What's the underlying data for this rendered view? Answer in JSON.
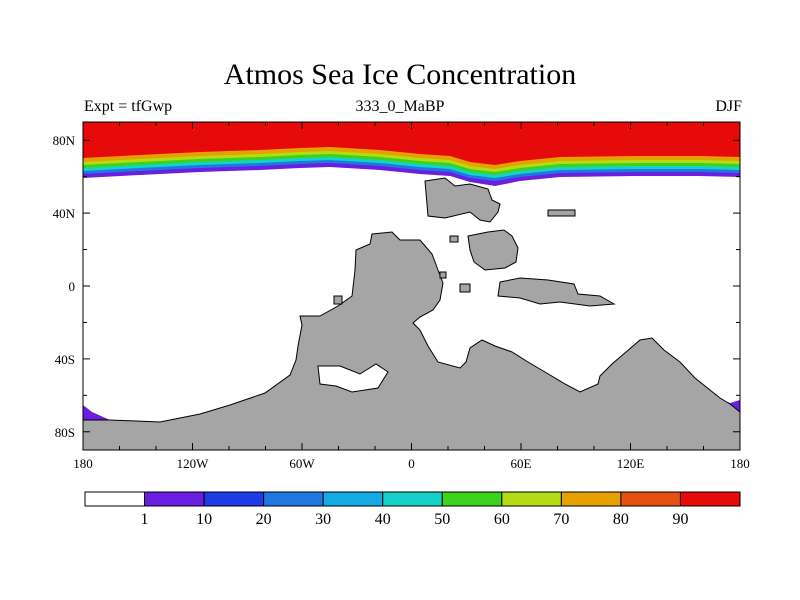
{
  "title": "Atmos Sea Ice Concentration",
  "left_label": "Expt = tfGwp",
  "center_label": "333_0_MaBP",
  "right_label": "DJF",
  "chart_data": {
    "type": "map",
    "variable": "sea ice concentration",
    "units": "%",
    "x_ticks": [
      "180",
      "120W",
      "60W",
      "0",
      "60E",
      "120E",
      "180"
    ],
    "y_ticks": [
      "80N",
      "40N",
      "0",
      "40S",
      "80S"
    ],
    "xlim": [
      -180,
      180
    ],
    "ylim": [
      -90,
      90
    ],
    "land_color": "#a5a5a5",
    "colorbar": {
      "colors": [
        "#ffffff",
        "#6a1ee0",
        "#1e3ce6",
        "#1e78e0",
        "#14aae6",
        "#14d2c8",
        "#3cd21e",
        "#b4dc14",
        "#e6a000",
        "#e65010",
        "#e60a0a"
      ],
      "labels": [
        "1",
        "10",
        "20",
        "30",
        "40",
        "50",
        "60",
        "70",
        "80",
        "90"
      ]
    }
  }
}
